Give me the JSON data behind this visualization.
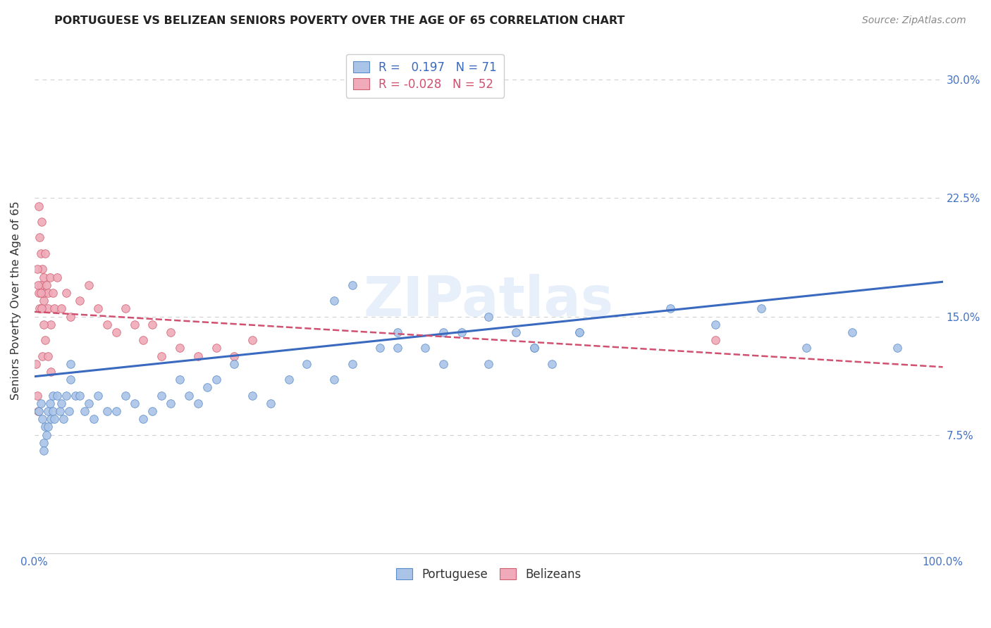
{
  "title": "PORTUGUESE VS BELIZEAN SENIORS POVERTY OVER THE AGE OF 65 CORRELATION CHART",
  "source": "Source: ZipAtlas.com",
  "ylabel": "Seniors Poverty Over the Age of 65",
  "watermark": "ZIPatlas",
  "xlim": [
    0.0,
    1.0
  ],
  "ylim": [
    0.0,
    0.32
  ],
  "xticks": [
    0.0,
    0.1,
    0.2,
    0.3,
    0.4,
    0.5,
    0.6,
    0.7,
    0.8,
    0.9,
    1.0
  ],
  "xticklabels": [
    "0.0%",
    "",
    "",
    "",
    "",
    "",
    "",
    "",
    "",
    "",
    "100.0%"
  ],
  "yticks": [
    0.0,
    0.075,
    0.15,
    0.225,
    0.3
  ],
  "yticklabels_right": [
    "",
    "7.5%",
    "15.0%",
    "22.5%",
    "30.0%"
  ],
  "portuguese_color": "#aac4e8",
  "belizean_color": "#f0aaba",
  "portuguese_edge_color": "#5b8dc8",
  "belizean_edge_color": "#d06070",
  "portuguese_line_color": "#3a6abf",
  "belizean_line_color": "#d05070",
  "portuguese_R": 0.197,
  "portuguese_N": 71,
  "belizean_R": -0.028,
  "belizean_N": 52,
  "portuguese_x": [
    0.005,
    0.007,
    0.009,
    0.01,
    0.01,
    0.012,
    0.013,
    0.015,
    0.015,
    0.017,
    0.018,
    0.02,
    0.02,
    0.022,
    0.025,
    0.028,
    0.03,
    0.032,
    0.035,
    0.038,
    0.04,
    0.04,
    0.045,
    0.05,
    0.055,
    0.06,
    0.065,
    0.07,
    0.08,
    0.09,
    0.1,
    0.11,
    0.12,
    0.13,
    0.14,
    0.15,
    0.16,
    0.17,
    0.18,
    0.19,
    0.2,
    0.22,
    0.24,
    0.26,
    0.28,
    0.3,
    0.33,
    0.35,
    0.38,
    0.4,
    0.43,
    0.45,
    0.47,
    0.5,
    0.53,
    0.55,
    0.57,
    0.6,
    0.33,
    0.35,
    0.4,
    0.45,
    0.5,
    0.55,
    0.6,
    0.7,
    0.75,
    0.8,
    0.85,
    0.9,
    0.95
  ],
  "portuguese_y": [
    0.09,
    0.095,
    0.085,
    0.07,
    0.065,
    0.08,
    0.075,
    0.09,
    0.08,
    0.095,
    0.085,
    0.1,
    0.09,
    0.085,
    0.1,
    0.09,
    0.095,
    0.085,
    0.1,
    0.09,
    0.12,
    0.11,
    0.1,
    0.1,
    0.09,
    0.095,
    0.085,
    0.1,
    0.09,
    0.09,
    0.1,
    0.095,
    0.085,
    0.09,
    0.1,
    0.095,
    0.11,
    0.1,
    0.095,
    0.105,
    0.11,
    0.12,
    0.1,
    0.095,
    0.11,
    0.12,
    0.16,
    0.17,
    0.13,
    0.14,
    0.13,
    0.12,
    0.14,
    0.12,
    0.14,
    0.13,
    0.12,
    0.14,
    0.11,
    0.12,
    0.13,
    0.14,
    0.15,
    0.13,
    0.14,
    0.155,
    0.145,
    0.155,
    0.13,
    0.14,
    0.13
  ],
  "belizean_x": [
    0.002,
    0.003,
    0.004,
    0.005,
    0.006,
    0.007,
    0.007,
    0.008,
    0.009,
    0.01,
    0.01,
    0.01,
    0.012,
    0.013,
    0.015,
    0.015,
    0.017,
    0.018,
    0.02,
    0.022,
    0.025,
    0.03,
    0.035,
    0.04,
    0.05,
    0.06,
    0.07,
    0.08,
    0.09,
    0.1,
    0.11,
    0.12,
    0.13,
    0.14,
    0.15,
    0.16,
    0.18,
    0.2,
    0.22,
    0.24,
    0.003,
    0.004,
    0.005,
    0.006,
    0.007,
    0.008,
    0.009,
    0.01,
    0.012,
    0.015,
    0.018,
    0.75
  ],
  "belizean_y": [
    0.12,
    0.1,
    0.09,
    0.22,
    0.2,
    0.19,
    0.17,
    0.21,
    0.18,
    0.16,
    0.175,
    0.165,
    0.19,
    0.17,
    0.155,
    0.165,
    0.175,
    0.145,
    0.165,
    0.155,
    0.175,
    0.155,
    0.165,
    0.15,
    0.16,
    0.17,
    0.155,
    0.145,
    0.14,
    0.155,
    0.145,
    0.135,
    0.145,
    0.125,
    0.14,
    0.13,
    0.125,
    0.13,
    0.125,
    0.135,
    0.18,
    0.17,
    0.165,
    0.155,
    0.165,
    0.155,
    0.125,
    0.145,
    0.135,
    0.125,
    0.115,
    0.135
  ],
  "legend_portuguese_label": "Portuguese",
  "legend_belizean_label": "Belizeans",
  "title_color": "#222222",
  "axis_tick_color": "#4472c4",
  "grid_color": "#d0d0d0",
  "marker_size": 70,
  "port_line_start_y": 0.112,
  "port_line_end_y": 0.172,
  "beli_line_start_y": 0.153,
  "beli_line_end_y": 0.118
}
